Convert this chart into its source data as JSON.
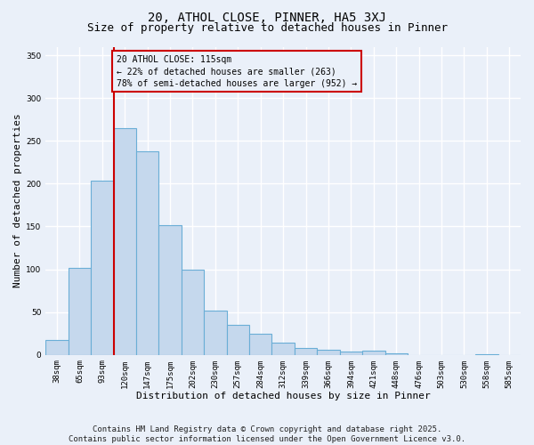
{
  "title": "20, ATHOL CLOSE, PINNER, HA5 3XJ",
  "subtitle": "Size of property relative to detached houses in Pinner",
  "xlabel": "Distribution of detached houses by size in Pinner",
  "ylabel": "Number of detached properties",
  "footer": "Contains HM Land Registry data © Crown copyright and database right 2025.\nContains public sector information licensed under the Open Government Licence v3.0.",
  "categories": [
    "38sqm",
    "65sqm",
    "93sqm",
    "120sqm",
    "147sqm",
    "175sqm",
    "202sqm",
    "230sqm",
    "257sqm",
    "284sqm",
    "312sqm",
    "339sqm",
    "366sqm",
    "394sqm",
    "421sqm",
    "448sqm",
    "476sqm",
    "503sqm",
    "530sqm",
    "558sqm",
    "585sqm"
  ],
  "values": [
    17,
    102,
    203,
    265,
    238,
    152,
    100,
    52,
    35,
    25,
    14,
    8,
    6,
    4,
    5,
    2,
    0,
    0,
    0,
    1,
    0
  ],
  "bar_color": "#c5d8ed",
  "bar_edge_color": "#6aaed6",
  "background_color": "#eaf0f9",
  "grid_color": "#ffffff",
  "annotation_line1": "20 ATHOL CLOSE: 115sqm",
  "annotation_line2": "← 22% of detached houses are smaller (263)",
  "annotation_line3": "78% of semi-detached houses are larger (952) →",
  "vline_color": "#cc0000",
  "vline_x_index": 3,
  "ylim": [
    0,
    360
  ],
  "yticks": [
    0,
    50,
    100,
    150,
    200,
    250,
    300,
    350
  ],
  "title_fontsize": 10,
  "subtitle_fontsize": 9,
  "axis_label_fontsize": 8,
  "tick_fontsize": 6.5,
  "annotation_fontsize": 7,
  "footer_fontsize": 6.5
}
